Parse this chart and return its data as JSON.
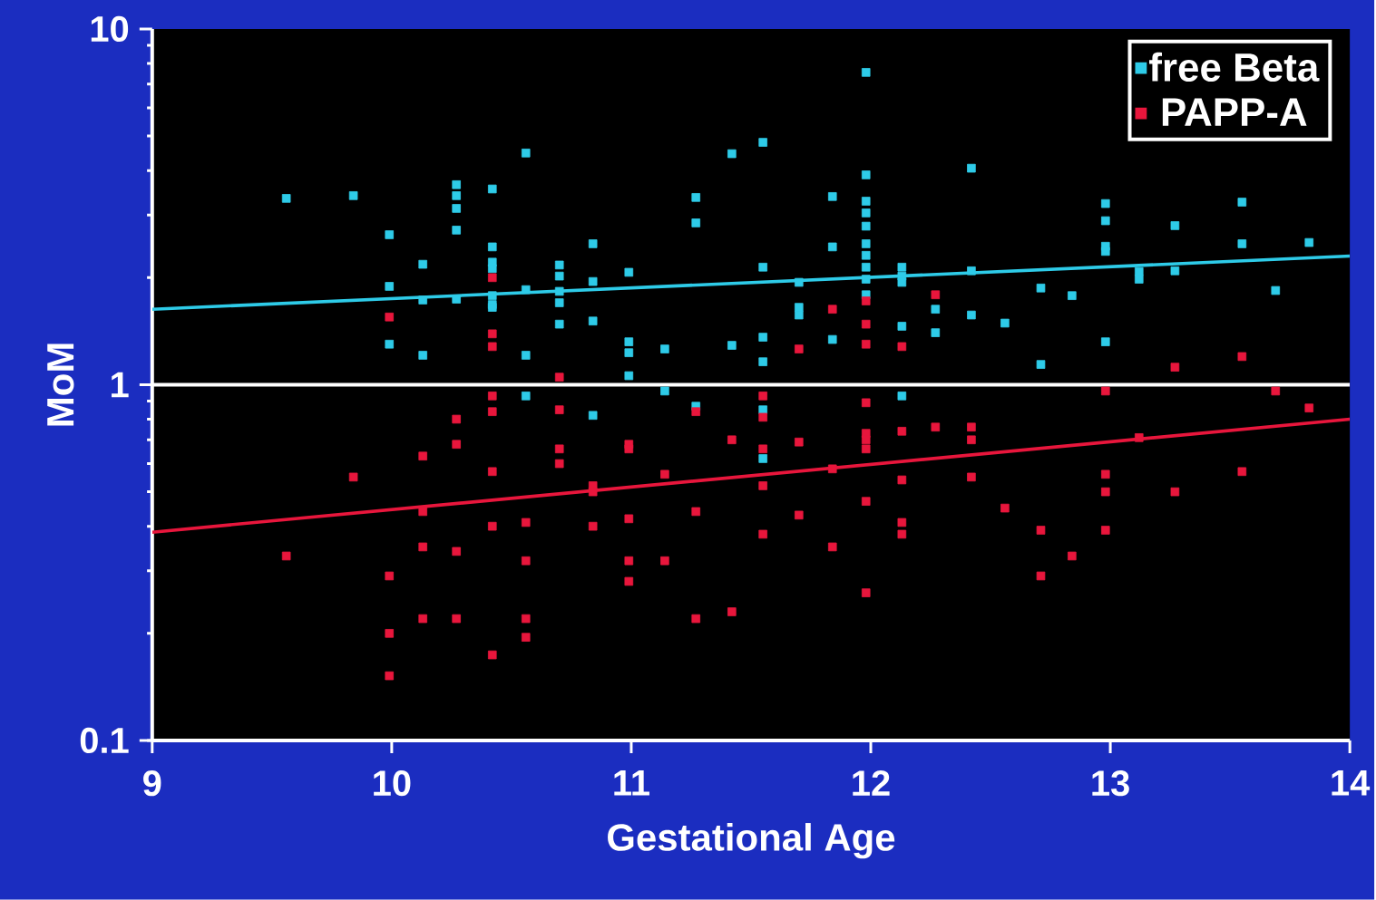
{
  "chart_data": {
    "type": "scatter",
    "xlabel": "Gestational Age",
    "ylabel": "MoM",
    "xlim": [
      9,
      14
    ],
    "ylim": [
      0.1,
      10
    ],
    "xticks": [
      9,
      10,
      11,
      12,
      13,
      14
    ],
    "yticks": [
      0.1,
      1,
      10
    ],
    "log": "y",
    "legend": "top right",
    "grid": false,
    "ref_lines": [
      {
        "axis": "y",
        "value": 1,
        "color": "#ffffff"
      }
    ],
    "series": [
      {
        "name": "free Beta",
        "color": "#2ecbe8",
        "marker": "square",
        "x": [
          9.56,
          9.84,
          9.99,
          9.99,
          9.99,
          10.13,
          10.13,
          10.13,
          10.27,
          10.27,
          10.27,
          10.27,
          10.27,
          10.42,
          10.42,
          10.42,
          10.42,
          10.42,
          10.42,
          10.42,
          10.56,
          10.56,
          10.56,
          10.56,
          10.7,
          10.7,
          10.7,
          10.7,
          10.7,
          10.84,
          10.84,
          10.84,
          10.84,
          10.99,
          10.99,
          10.99,
          10.99,
          11.14,
          11.14,
          11.27,
          11.27,
          11.27,
          11.42,
          11.42,
          11.55,
          11.55,
          11.55,
          11.55,
          11.55,
          11.55,
          11.7,
          11.7,
          11.7,
          11.84,
          11.84,
          11.84,
          11.98,
          11.98,
          11.98,
          11.98,
          11.98,
          11.98,
          11.98,
          11.98,
          11.98,
          11.98,
          12.13,
          12.13,
          12.13,
          12.13,
          12.13,
          12.27,
          12.27,
          12.42,
          12.42,
          12.42,
          12.56,
          12.71,
          12.71,
          12.84,
          12.98,
          12.98,
          12.98,
          12.98,
          12.98,
          13.12,
          13.12,
          13.27,
          13.27,
          13.55,
          13.55,
          13.69,
          13.83
        ],
        "values": [
          3.34,
          3.4,
          2.64,
          1.89,
          1.3,
          2.18,
          1.73,
          1.21,
          3.65,
          3.4,
          3.13,
          2.72,
          1.74,
          3.55,
          2.44,
          2.21,
          2.12,
          1.78,
          1.68,
          1.65,
          4.48,
          1.85,
          1.21,
          0.93,
          2.17,
          2.02,
          1.83,
          1.7,
          1.48,
          2.49,
          1.95,
          1.51,
          0.82,
          2.07,
          1.32,
          1.23,
          1.06,
          1.26,
          0.96,
          3.36,
          2.85,
          0.87,
          4.46,
          1.29,
          4.8,
          2.14,
          1.36,
          1.16,
          0.85,
          0.62,
          1.94,
          1.65,
          1.57,
          3.38,
          2.44,
          1.34,
          7.55,
          3.89,
          3.28,
          3.04,
          2.79,
          2.49,
          2.31,
          2.14,
          1.98,
          1.79,
          2.14,
          2.02,
          1.94,
          1.46,
          0.93,
          1.63,
          1.4,
          4.06,
          2.09,
          1.57,
          1.49,
          1.87,
          1.14,
          1.78,
          3.23,
          2.89,
          2.45,
          2.37,
          1.32,
          2.08,
          1.98,
          2.8,
          2.09,
          3.26,
          2.49,
          1.84,
          2.51
        ]
      },
      {
        "name": "PAPP-A",
        "color": "#e8163c",
        "marker": "square",
        "x": [
          9.56,
          9.84,
          9.99,
          9.99,
          9.99,
          9.99,
          10.13,
          10.13,
          10.13,
          10.13,
          10.27,
          10.27,
          10.27,
          10.27,
          10.42,
          10.42,
          10.42,
          10.42,
          10.42,
          10.42,
          10.42,
          10.42,
          10.56,
          10.56,
          10.56,
          10.56,
          10.7,
          10.7,
          10.7,
          10.7,
          10.84,
          10.84,
          10.84,
          10.99,
          10.99,
          10.99,
          10.99,
          10.99,
          11.14,
          11.14,
          11.27,
          11.27,
          11.27,
          11.42,
          11.42,
          11.55,
          11.55,
          11.55,
          11.55,
          11.55,
          11.7,
          11.7,
          11.7,
          11.84,
          11.84,
          11.84,
          11.98,
          11.98,
          11.98,
          11.98,
          11.98,
          11.98,
          11.98,
          11.98,
          11.98,
          12.13,
          12.13,
          12.13,
          12.13,
          12.13,
          12.27,
          12.27,
          12.42,
          12.42,
          12.42,
          12.56,
          12.71,
          12.71,
          12.84,
          12.98,
          12.98,
          12.98,
          12.98,
          13.12,
          13.27,
          13.27,
          13.55,
          13.55,
          13.69,
          13.83
        ],
        "values": [
          0.33,
          0.55,
          1.55,
          0.29,
          0.2,
          0.152,
          0.63,
          0.44,
          0.35,
          0.22,
          0.8,
          0.68,
          0.34,
          0.22,
          2.0,
          1.39,
          1.28,
          0.93,
          0.84,
          0.57,
          0.4,
          0.174,
          0.41,
          0.32,
          0.22,
          0.195,
          1.05,
          0.85,
          0.66,
          0.6,
          0.52,
          0.5,
          0.4,
          0.68,
          0.66,
          0.42,
          0.32,
          0.28,
          0.56,
          0.32,
          0.84,
          0.44,
          0.22,
          0.7,
          0.23,
          0.93,
          0.81,
          0.66,
          0.52,
          0.38,
          1.26,
          0.69,
          0.43,
          1.63,
          0.58,
          0.35,
          1.72,
          1.48,
          1.3,
          0.89,
          0.73,
          0.7,
          0.66,
          0.47,
          0.26,
          1.28,
          0.74,
          0.54,
          0.41,
          0.38,
          1.79,
          0.76,
          0.76,
          0.7,
          0.55,
          0.45,
          0.39,
          0.29,
          0.33,
          0.96,
          0.56,
          0.5,
          0.39,
          0.71,
          1.12,
          0.5,
          1.2,
          0.57,
          0.96,
          0.86
        ]
      },
      {
        "type": "line",
        "color": "#2ecbe8",
        "x": [
          9,
          14
        ],
        "values": [
          1.63,
          2.3
        ]
      },
      {
        "type": "line",
        "color": "#e8163c",
        "x": [
          9,
          14
        ],
        "values": [
          0.385,
          0.8
        ]
      }
    ]
  }
}
